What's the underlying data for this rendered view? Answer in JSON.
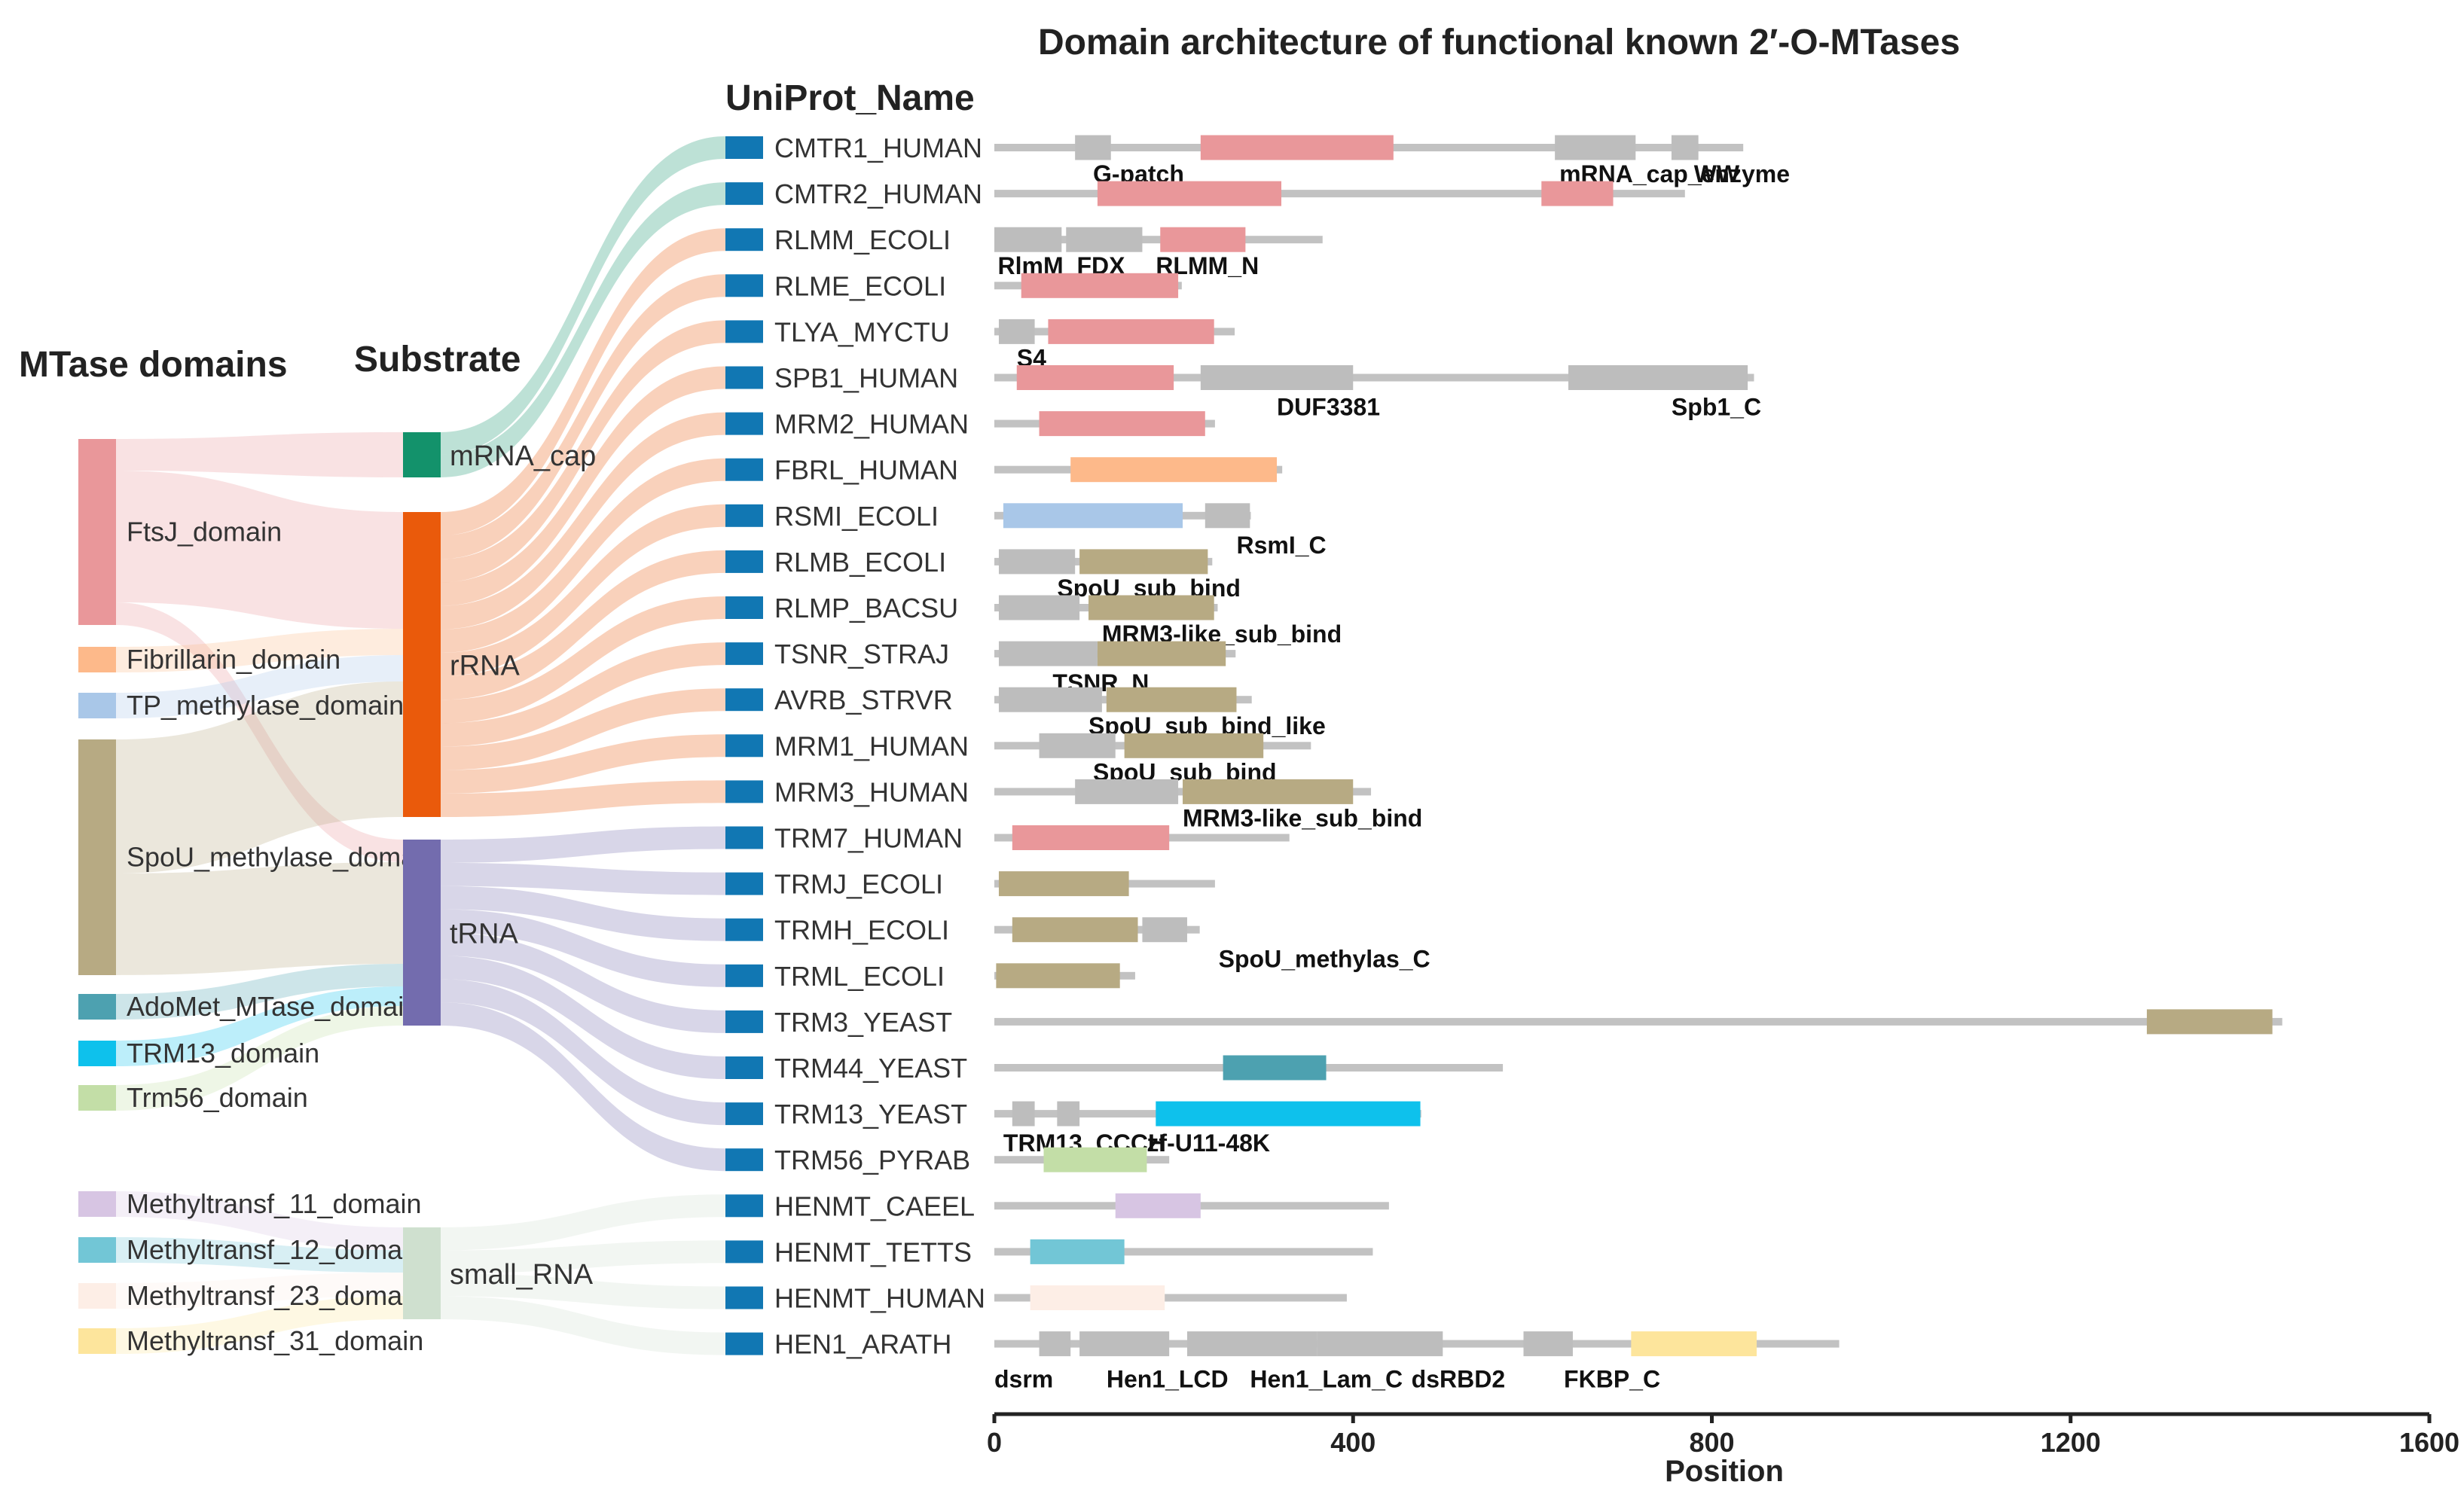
{
  "figure": {
    "title": "Domain architecture of functional known 2′-O-MTases",
    "column_headers": {
      "domains": "MTase domains",
      "substrate": "Substrate",
      "uniprot": "UniProt_Name"
    }
  },
  "colors": {
    "FtsJ_domain": "#e9979a",
    "Fibrillarin_domain": "#fdb98a",
    "TP_methylase_domain": "#a9c7e8",
    "SpoU_methylase_domain": "#b7aa83",
    "AdoMet_MTase_domain": "#4da1b0",
    "TRM13_domain": "#0ec1ec",
    "Trm56_domain": "#c3dea7",
    "Methyltransf_11_domain": "#d7c5e3",
    "Methyltransf_12_domain": "#72c6d6",
    "Methyltransf_23_domain": "#fdeee6",
    "Methyltransf_31_domain": "#fde59c",
    "mRNA_cap": "#13926b",
    "rRNA": "#ea5a0b",
    "tRNA": "#736cae",
    "small_RNA": "#cfe0cf",
    "protein_marker": "#1177b3",
    "other_domain": "#bdbdbd",
    "backbone": "#c2c2c2"
  },
  "domains": [
    {
      "key": "FtsJ_domain",
      "label": "FtsJ_domain"
    },
    {
      "key": "Fibrillarin_domain",
      "label": "Fibrillarin_domain"
    },
    {
      "key": "TP_methylase_domain",
      "label": "TP_methylase_domain"
    },
    {
      "key": "SpoU_methylase_domain",
      "label": "SpoU_methylase_domain"
    },
    {
      "key": "AdoMet_MTase_domain",
      "label": "AdoMet_MTase_domain"
    },
    {
      "key": "TRM13_domain",
      "label": "TRM13_domain"
    },
    {
      "key": "Trm56_domain",
      "label": "Trm56_domain"
    },
    {
      "key": "Methyltransf_11_domain",
      "label": "Methyltransf_11_domain"
    },
    {
      "key": "Methyltransf_12_domain",
      "label": "Methyltransf_12_domain"
    },
    {
      "key": "Methyltransf_23_domain",
      "label": "Methyltransf_23_domain"
    },
    {
      "key": "Methyltransf_31_domain",
      "label": "Methyltransf_31_domain"
    }
  ],
  "substrates": [
    {
      "key": "mRNA_cap",
      "label": "mRNA_cap"
    },
    {
      "key": "rRNA",
      "label": "rRNA"
    },
    {
      "key": "tRNA",
      "label": "tRNA"
    },
    {
      "key": "small_RNA",
      "label": "small_RNA"
    }
  ],
  "proteins": [
    {
      "name": "CMTR1_HUMAN",
      "substrate": "mRNA_cap",
      "length": 835,
      "domains": [
        {
          "s": 90,
          "e": 130,
          "t": "other"
        },
        {
          "s": 230,
          "e": 445,
          "t": "FtsJ_domain"
        },
        {
          "s": 625,
          "e": 715,
          "t": "other"
        },
        {
          "s": 755,
          "e": 785,
          "t": "other"
        }
      ],
      "labels": [
        "G-patch",
        "mRNA_cap_enzyme",
        "WW"
      ]
    },
    {
      "name": "CMTR2_HUMAN",
      "substrate": "mRNA_cap",
      "length": 770,
      "domains": [
        {
          "s": 115,
          "e": 320,
          "t": "FtsJ_domain"
        },
        {
          "s": 610,
          "e": 690,
          "t": "FtsJ_domain"
        }
      ],
      "labels": []
    },
    {
      "name": "RLMM_ECOLI",
      "substrate": "rRNA",
      "length": 366,
      "domains": [
        {
          "s": 0,
          "e": 75,
          "t": "other"
        },
        {
          "s": 80,
          "e": 165,
          "t": "other"
        },
        {
          "s": 185,
          "e": 280,
          "t": "FtsJ_domain"
        }
      ],
      "labels": [
        "RlmM_FDX",
        "RLMM_N"
      ]
    },
    {
      "name": "RLME_ECOLI",
      "substrate": "rRNA",
      "length": 209,
      "domains": [
        {
          "s": 30,
          "e": 205,
          "t": "FtsJ_domain"
        }
      ],
      "labels": []
    },
    {
      "name": "TLYA_MYCTU",
      "substrate": "rRNA",
      "length": 268,
      "domains": [
        {
          "s": 5,
          "e": 45,
          "t": "other"
        },
        {
          "s": 60,
          "e": 245,
          "t": "FtsJ_domain"
        }
      ],
      "labels": [
        "S4"
      ]
    },
    {
      "name": "SPB1_HUMAN",
      "substrate": "rRNA",
      "length": 847,
      "domains": [
        {
          "s": 25,
          "e": 200,
          "t": "FtsJ_domain"
        },
        {
          "s": 230,
          "e": 400,
          "t": "other"
        },
        {
          "s": 640,
          "e": 840,
          "t": "other"
        }
      ],
      "labels": [
        "DUF3381",
        "Spb1_C"
      ]
    },
    {
      "name": "MRM2_HUMAN",
      "substrate": "rRNA",
      "length": 246,
      "domains": [
        {
          "s": 50,
          "e": 235,
          "t": "FtsJ_domain"
        }
      ],
      "labels": []
    },
    {
      "name": "FBRL_HUMAN",
      "substrate": "rRNA",
      "length": 321,
      "domains": [
        {
          "s": 85,
          "e": 315,
          "t": "Fibrillarin_domain"
        }
      ],
      "labels": []
    },
    {
      "name": "RSMI_ECOLI",
      "substrate": "rRNA",
      "length": 286,
      "domains": [
        {
          "s": 10,
          "e": 210,
          "t": "TP_methylase_domain"
        },
        {
          "s": 235,
          "e": 285,
          "t": "other"
        }
      ],
      "labels": [
        "RsmI_C"
      ]
    },
    {
      "name": "RLMB_ECOLI",
      "substrate": "rRNA",
      "length": 243,
      "domains": [
        {
          "s": 5,
          "e": 90,
          "t": "other"
        },
        {
          "s": 95,
          "e": 238,
          "t": "SpoU_methylase_domain"
        }
      ],
      "labels": [
        "SpoU_sub_bind"
      ]
    },
    {
      "name": "RLMP_BACSU",
      "substrate": "rRNA",
      "length": 249,
      "domains": [
        {
          "s": 5,
          "e": 95,
          "t": "other"
        },
        {
          "s": 105,
          "e": 245,
          "t": "SpoU_methylase_domain"
        }
      ],
      "labels": [
        "MRM3-like_sub_bind"
      ]
    },
    {
      "name": "TSNR_STRAJ",
      "substrate": "rRNA",
      "length": 269,
      "domains": [
        {
          "s": 5,
          "e": 115,
          "t": "other"
        },
        {
          "s": 115,
          "e": 258,
          "t": "SpoU_methylase_domain"
        }
      ],
      "labels": [
        "TSNR_N"
      ]
    },
    {
      "name": "AVRB_STRVR",
      "substrate": "rRNA",
      "length": 287,
      "domains": [
        {
          "s": 5,
          "e": 120,
          "t": "other"
        },
        {
          "s": 125,
          "e": 270,
          "t": "SpoU_methylase_domain"
        }
      ],
      "labels": [
        "SpoU_sub_bind_like"
      ]
    },
    {
      "name": "MRM1_HUMAN",
      "substrate": "rRNA",
      "length": 353,
      "domains": [
        {
          "s": 50,
          "e": 135,
          "t": "other"
        },
        {
          "s": 145,
          "e": 300,
          "t": "SpoU_methylase_domain"
        }
      ],
      "labels": [
        "SpoU_sub_bind"
      ]
    },
    {
      "name": "MRM3_HUMAN",
      "substrate": "rRNA",
      "length": 420,
      "domains": [
        {
          "s": 90,
          "e": 205,
          "t": "other"
        },
        {
          "s": 210,
          "e": 400,
          "t": "SpoU_methylase_domain"
        }
      ],
      "labels": [
        "MRM3-like_sub_bind"
      ]
    },
    {
      "name": "TRM7_HUMAN",
      "substrate": "tRNA",
      "length": 329,
      "domains": [
        {
          "s": 20,
          "e": 195,
          "t": "FtsJ_domain"
        }
      ],
      "labels": []
    },
    {
      "name": "TRMJ_ECOLI",
      "substrate": "tRNA",
      "length": 246,
      "domains": [
        {
          "s": 5,
          "e": 150,
          "t": "SpoU_methylase_domain"
        }
      ],
      "labels": []
    },
    {
      "name": "TRMH_ECOLI",
      "substrate": "tRNA",
      "length": 229,
      "domains": [
        {
          "s": 20,
          "e": 160,
          "t": "SpoU_methylase_domain"
        },
        {
          "s": 165,
          "e": 215,
          "t": "other"
        }
      ],
      "labels": [
        "SpoU_methylas_C"
      ]
    },
    {
      "name": "TRML_ECOLI",
      "substrate": "tRNA",
      "length": 157,
      "domains": [
        {
          "s": 2,
          "e": 140,
          "t": "SpoU_methylase_domain"
        }
      ],
      "labels": []
    },
    {
      "name": "TRM3_YEAST",
      "substrate": "tRNA",
      "length": 1436,
      "domains": [
        {
          "s": 1285,
          "e": 1425,
          "t": "SpoU_methylase_domain"
        }
      ],
      "labels": []
    },
    {
      "name": "TRM44_YEAST",
      "substrate": "tRNA",
      "length": 567,
      "domains": [
        {
          "s": 255,
          "e": 370,
          "t": "AdoMet_MTase_domain"
        }
      ],
      "labels": []
    },
    {
      "name": "TRM13_YEAST",
      "substrate": "tRNA",
      "length": 476,
      "domains": [
        {
          "s": 20,
          "e": 45,
          "t": "other"
        },
        {
          "s": 70,
          "e": 95,
          "t": "other"
        },
        {
          "s": 180,
          "e": 475,
          "t": "TRM13_domain"
        }
      ],
      "labels": [
        "TRM13_CCCH",
        "zf-U11-48K"
      ]
    },
    {
      "name": "TRM56_PYRAB",
      "substrate": "tRNA",
      "length": 195,
      "domains": [
        {
          "s": 55,
          "e": 170,
          "t": "Trm56_domain"
        }
      ],
      "labels": []
    },
    {
      "name": "HENMT_CAEEL",
      "substrate": "small_RNA",
      "length": 440,
      "domains": [
        {
          "s": 135,
          "e": 230,
          "t": "Methyltransf_11_domain"
        }
      ],
      "labels": []
    },
    {
      "name": "HENMT_TETTS",
      "substrate": "small_RNA",
      "length": 422,
      "domains": [
        {
          "s": 40,
          "e": 145,
          "t": "Methyltransf_12_domain"
        }
      ],
      "labels": []
    },
    {
      "name": "HENMT_HUMAN",
      "substrate": "small_RNA",
      "length": 393,
      "domains": [
        {
          "s": 40,
          "e": 190,
          "t": "Methyltransf_23_domain"
        }
      ],
      "labels": []
    },
    {
      "name": "HEN1_ARATH",
      "substrate": "small_RNA",
      "length": 942,
      "domains": [
        {
          "s": 50,
          "e": 85,
          "t": "other"
        },
        {
          "s": 95,
          "e": 195,
          "t": "other"
        },
        {
          "s": 215,
          "e": 360,
          "t": "other"
        },
        {
          "s": 360,
          "e": 500,
          "t": "other"
        },
        {
          "s": 590,
          "e": 645,
          "t": "other"
        },
        {
          "s": 710,
          "e": 850,
          "t": "Methyltransf_31_domain"
        }
      ],
      "labels": [
        "dsrm",
        "Hen1_LCD",
        "Hen1_Lam_C",
        "dsRBD2",
        "FKBP_C"
      ]
    }
  ],
  "axis": {
    "xlabel": "Position",
    "xlim": [
      0,
      1600
    ],
    "ticks": [
      0,
      400,
      800,
      1200,
      1600
    ]
  }
}
